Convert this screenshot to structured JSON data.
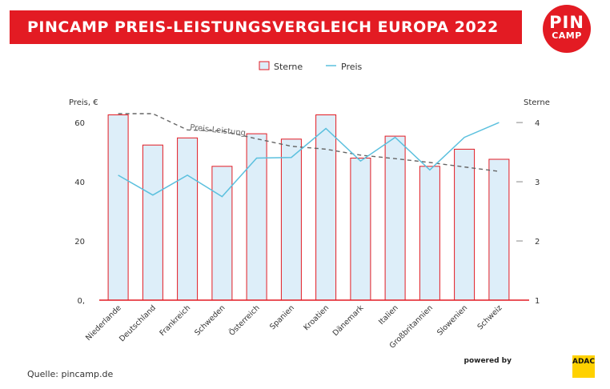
{
  "header": {
    "title": "PINCAMP PREIS-LEISTUNGSVERGLEICH EUROPA 2022",
    "logo_line1": "PIN",
    "logo_line2": "CAMP"
  },
  "footer": {
    "source": "Quelle: pincamp.de",
    "powered_by": "powered by",
    "partner": "ADAC"
  },
  "colors": {
    "brand": "#e31b23",
    "bar_fill": "#ddeef9",
    "bar_stroke": "#e31b23",
    "line": "#5bc0de",
    "trend": "#666666"
  },
  "chart_data": {
    "type": "bar",
    "categories": [
      "Niederlande",
      "Deutschland",
      "Frankreich",
      "Schweden",
      "Österreich",
      "Spanien",
      "Kroatien",
      "Dänemark",
      "Italien",
      "Großbritannien",
      "Slowenien",
      "Schweiz"
    ],
    "series": [
      {
        "name": "Sterne",
        "type": "bar",
        "axis": "right",
        "values": [
          4.13,
          3.62,
          3.74,
          3.26,
          3.81,
          3.72,
          4.13,
          3.4,
          3.77,
          3.26,
          3.55,
          3.38
        ]
      },
      {
        "name": "Preis",
        "type": "line",
        "axis": "left",
        "values": [
          42.2,
          35.5,
          42.2,
          35.0,
          48.0,
          48.2,
          58.0,
          47.0,
          55.0,
          44.0,
          55.0,
          60.0
        ]
      },
      {
        "type": "line",
        "dashed": true,
        "axis": "left",
        "values": [
          63.0,
          63.0,
          57.5,
          57.2,
          54.5,
          52.0,
          51.0,
          49.0,
          47.8,
          46.5,
          45.0,
          43.5
        ]
      }
    ],
    "annotation": "Preis-Leistung",
    "left_axis": {
      "label": "Preis, €",
      "range": [
        0,
        63
      ],
      "ticks": [
        0,
        20,
        40,
        60
      ],
      "tick_labels": [
        "0,",
        "20",
        "40",
        "60"
      ]
    },
    "right_axis": {
      "label": "Sterne",
      "range": [
        1,
        4.15
      ],
      "ticks": [
        1,
        2,
        3,
        4
      ],
      "tick_labels": [
        "1",
        "2",
        "3",
        "4"
      ]
    },
    "legend_position": "top-center",
    "legend": [
      "Sterne",
      "Preis"
    ],
    "grid": false
  }
}
